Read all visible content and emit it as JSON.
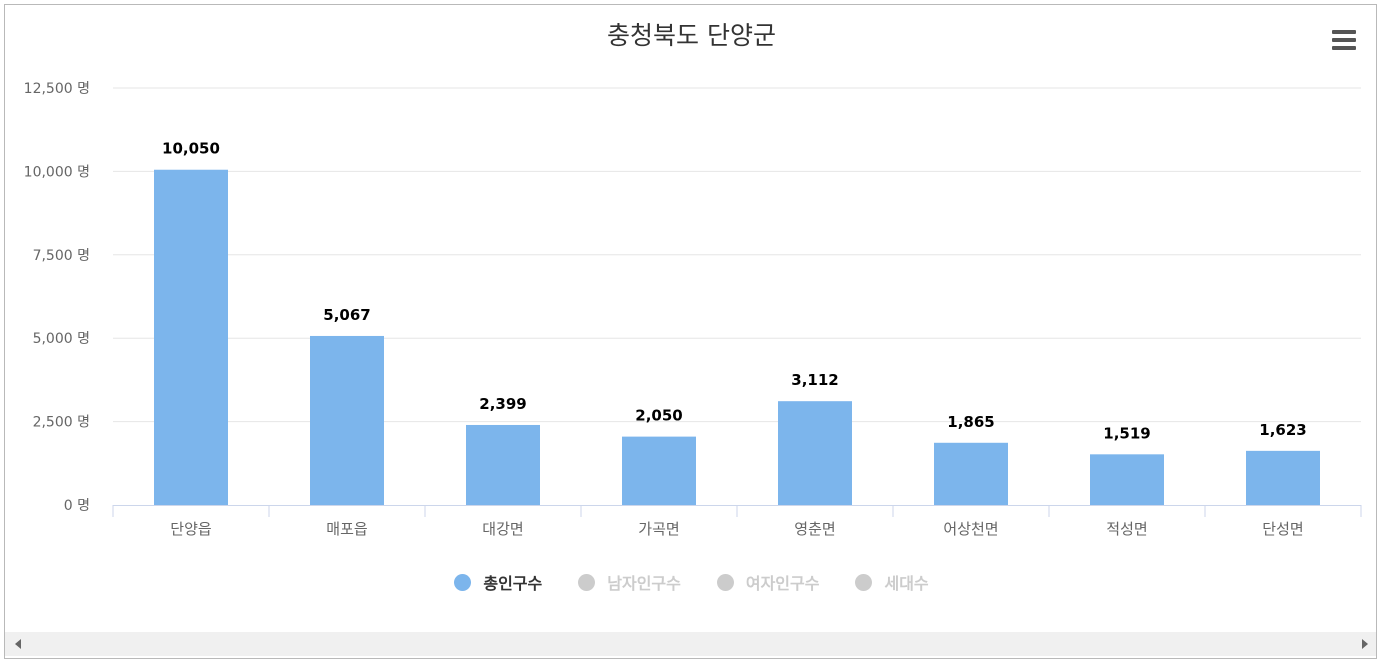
{
  "chart_data": {
    "type": "bar",
    "title": "충청북도 단양군",
    "categories": [
      "단양읍",
      "매포읍",
      "대강면",
      "가곡면",
      "영춘면",
      "어상천면",
      "적성면",
      "단성면"
    ],
    "series": [
      {
        "name": "총인구수",
        "values": [
          10050,
          5067,
          2399,
          2050,
          3112,
          1865,
          1519,
          1623
        ]
      }
    ],
    "data_labels": [
      "10,050",
      "5,067",
      "2,399",
      "2,050",
      "3,112",
      "1,865",
      "1,519",
      "1,623"
    ],
    "ylim": [
      0,
      12500
    ],
    "yticks": [
      0,
      2500,
      5000,
      7500,
      10000,
      12500
    ],
    "ytick_labels": [
      "0 명",
      "2,500 명",
      "5,000 명",
      "7,500 명",
      "10,000 명",
      "12,500 명"
    ],
    "grid": true,
    "legend_position": "bottom-center",
    "colors": {
      "bar": "#7cb5ec",
      "grid": "#e6e6e6",
      "axis": "#ccd6eb"
    }
  },
  "legend": [
    {
      "label": "총인구수",
      "color": "#7cb5ec",
      "text_color": "#333333"
    },
    {
      "label": "남자인구수",
      "color": "#cccccc",
      "text_color": "#cccccc"
    },
    {
      "label": "여자인구수",
      "color": "#cccccc",
      "text_color": "#cccccc"
    },
    {
      "label": "세대수",
      "color": "#cccccc",
      "text_color": "#cccccc"
    }
  ],
  "icons": {
    "menu": "hamburger-menu-icon",
    "scroll_left": "arrow-left-icon",
    "scroll_right": "arrow-right-icon"
  }
}
